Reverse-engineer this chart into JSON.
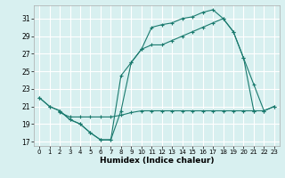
{
  "xlabel": "Humidex (Indice chaleur)",
  "bg_color": "#d8f0f0",
  "grid_color": "#ffffff",
  "line_color": "#1a7a6e",
  "xlim": [
    -0.5,
    23.5
  ],
  "ylim": [
    16.5,
    32.5
  ],
  "xticks": [
    0,
    1,
    2,
    3,
    4,
    5,
    6,
    7,
    8,
    9,
    10,
    11,
    12,
    13,
    14,
    15,
    16,
    17,
    18,
    19,
    20,
    21,
    22,
    23
  ],
  "yticks": [
    17,
    19,
    21,
    23,
    25,
    27,
    29,
    31
  ],
  "line1_x": [
    0,
    1,
    2,
    3,
    4,
    5,
    6,
    7,
    8,
    9,
    10,
    11,
    12,
    13,
    14,
    15,
    16,
    17,
    18,
    19,
    20,
    21
  ],
  "line1_y": [
    22,
    21,
    20.5,
    19.5,
    19,
    18,
    17.2,
    17.2,
    20.5,
    26,
    27.5,
    30,
    30.3,
    30.5,
    31,
    31.2,
    31.7,
    32,
    31,
    29.5,
    26.5,
    20.5
  ],
  "line2_x": [
    0,
    1,
    2,
    3,
    4,
    5,
    6,
    7,
    8,
    9,
    10,
    11,
    12,
    13,
    14,
    15,
    16,
    17,
    18,
    19,
    20,
    21,
    22,
    23
  ],
  "line2_y": [
    22,
    21,
    20.5,
    19.5,
    19,
    18,
    17.2,
    17.2,
    24.5,
    26,
    27.5,
    28,
    28,
    28.5,
    29,
    29.5,
    30,
    30.5,
    31,
    29.5,
    26.5,
    23.5,
    20.5,
    21
  ],
  "line3_x": [
    2,
    3,
    4,
    5,
    6,
    7,
    8,
    9,
    10,
    11,
    12,
    13,
    14,
    15,
    16,
    17,
    18,
    19,
    20,
    21,
    22,
    23
  ],
  "line3_y": [
    20.3,
    19.8,
    19.8,
    19.8,
    19.8,
    19.8,
    20.0,
    20.3,
    20.5,
    20.5,
    20.5,
    20.5,
    20.5,
    20.5,
    20.5,
    20.5,
    20.5,
    20.5,
    20.5,
    20.5,
    20.5,
    21
  ]
}
